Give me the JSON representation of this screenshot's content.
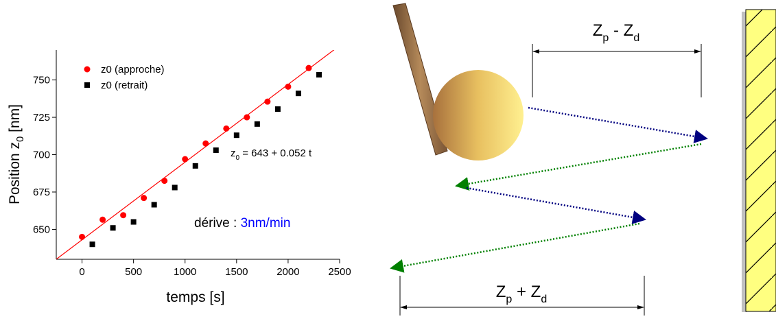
{
  "chart_data": {
    "type": "scatter",
    "x_label": "temps [s]",
    "y_label": [
      "Position z",
      "0",
      " [nm]"
    ],
    "xlim": [
      -250,
      2500
    ],
    "xticks": [
      0,
      500,
      1000,
      1500,
      2000,
      2500
    ],
    "ylim": [
      630,
      770
    ],
    "yticks": [
      650,
      675,
      700,
      725,
      750
    ],
    "legend": "upper left",
    "series": [
      {
        "name": "z0 (approche)",
        "color": "#ff0000",
        "marker": "circle",
        "x": [
          0,
          200,
          400,
          600,
          800,
          1000,
          1200,
          1400,
          1600,
          1800,
          2000,
          2200
        ],
        "values": [
          645,
          656.5,
          659.5,
          671,
          682.5,
          697,
          707.5,
          717.5,
          725,
          735.5,
          745.5,
          758
        ]
      },
      {
        "name": "z0 (retrait)",
        "color": "#000000",
        "marker": "square",
        "x": [
          100,
          300,
          500,
          700,
          900,
          1100,
          1300,
          1500,
          1700,
          1900,
          2100,
          2300
        ],
        "values": [
          640,
          651,
          655,
          666.5,
          678,
          692.5,
          703,
          713,
          720.5,
          730.5,
          741,
          753.5
        ]
      }
    ],
    "fit": {
      "intercept": 643,
      "slope": 0.052,
      "color": "#ff0000"
    },
    "fit_label": [
      "z",
      "0",
      " = 643 + 0.052 t"
    ],
    "drift_label": "dérive : ",
    "drift_value": "3nm/min"
  },
  "diagram": {
    "top_label": [
      "Z",
      "p",
      " - Z",
      "d"
    ],
    "bottom_label": [
      "Z",
      "p",
      " + Z",
      "d"
    ]
  }
}
